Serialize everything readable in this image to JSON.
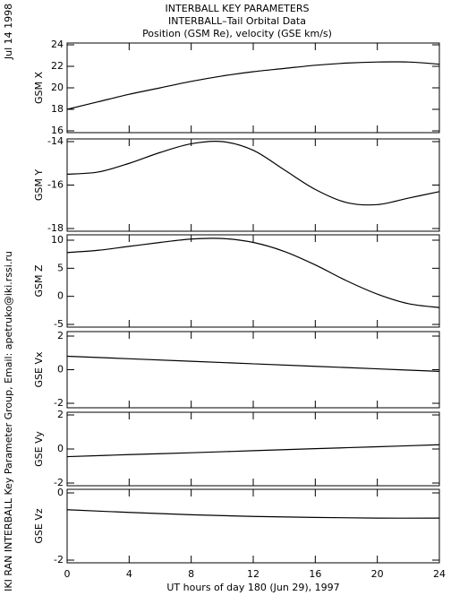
{
  "header": {
    "title": "INTERBALL KEY PARAMETERS",
    "subtitle": "INTERBALL–Tail Orbital Data",
    "subtitle2": "Position (GSM Re), velocity (GSE km/s)",
    "date": "Jul 14 1998",
    "credit": "IKI RAN INTERBALL Key Parameter Group, Email: apetruko@iki.rssi.ru"
  },
  "chart_data": [
    {
      "type": "line",
      "ylabel": "GSM X",
      "x": [
        0,
        2,
        4,
        6,
        8,
        10,
        12,
        14,
        16,
        18,
        20,
        22,
        24
      ],
      "values": [
        18.0,
        18.7,
        19.4,
        20.0,
        20.6,
        21.1,
        21.5,
        21.8,
        22.1,
        22.3,
        22.4,
        22.4,
        22.2
      ],
      "xlim": [
        0,
        24
      ],
      "xticks": [
        0,
        4,
        8,
        12,
        16,
        20,
        24
      ],
      "ylim": [
        16,
        24
      ],
      "yticks": [
        16,
        18,
        20,
        22,
        24
      ]
    },
    {
      "type": "line",
      "ylabel": "GSM Y",
      "x": [
        0,
        2,
        4,
        6,
        8,
        10,
        12,
        14,
        16,
        18,
        20,
        22,
        24
      ],
      "values": [
        -15.5,
        -15.4,
        -15.0,
        -14.5,
        -14.1,
        -14.0,
        -14.4,
        -15.3,
        -16.2,
        -16.8,
        -16.9,
        -16.6,
        -16.3
      ],
      "xlim": [
        0,
        24
      ],
      "xticks": [
        0,
        4,
        8,
        12,
        16,
        20,
        24
      ],
      "ylim": [
        -18,
        -14
      ],
      "yticks": [
        -18,
        -16,
        -14
      ]
    },
    {
      "type": "line",
      "ylabel": "GSM Z",
      "x": [
        0,
        2,
        4,
        6,
        8,
        10,
        12,
        14,
        16,
        18,
        20,
        22,
        24
      ],
      "values": [
        7.8,
        8.2,
        8.9,
        9.6,
        10.2,
        10.3,
        9.6,
        8.0,
        5.6,
        2.8,
        0.4,
        -1.3,
        -2.0
      ],
      "xlim": [
        0,
        24
      ],
      "xticks": [
        0,
        4,
        8,
        12,
        16,
        20,
        24
      ],
      "ylim": [
        -5,
        10
      ],
      "yticks": [
        -5,
        0,
        5,
        10
      ]
    },
    {
      "type": "line",
      "ylabel": "GSE Vx",
      "x": [
        0,
        4,
        8,
        12,
        16,
        20,
        24
      ],
      "values": [
        0.8,
        0.65,
        0.5,
        0.35,
        0.2,
        0.05,
        -0.1
      ],
      "xlim": [
        0,
        24
      ],
      "xticks": [
        0,
        4,
        8,
        12,
        16,
        20,
        24
      ],
      "ylim": [
        -2,
        2
      ],
      "yticks": [
        -2,
        0,
        2
      ]
    },
    {
      "type": "line",
      "ylabel": "GSE Vy",
      "x": [
        0,
        4,
        8,
        12,
        16,
        20,
        24
      ],
      "values": [
        -0.45,
        -0.33,
        -0.22,
        -0.1,
        0.02,
        0.13,
        0.25
      ],
      "xlim": [
        0,
        24
      ],
      "xticks": [
        0,
        4,
        8,
        12,
        16,
        20,
        24
      ],
      "ylim": [
        -2,
        2
      ],
      "yticks": [
        -2,
        0,
        2
      ]
    },
    {
      "type": "line",
      "ylabel": "GSE Vz",
      "x": [
        0,
        4,
        8,
        12,
        16,
        20,
        24
      ],
      "values": [
        -0.5,
        -0.58,
        -0.65,
        -0.7,
        -0.73,
        -0.75,
        -0.75
      ],
      "xlim": [
        0,
        24
      ],
      "xticks": [
        0,
        4,
        8,
        12,
        16,
        20,
        24
      ],
      "ylim": [
        -2,
        0
      ],
      "yticks": [
        -2,
        0
      ],
      "xlabel": "UT hours of day 180 (Jun 29), 1997"
    }
  ]
}
